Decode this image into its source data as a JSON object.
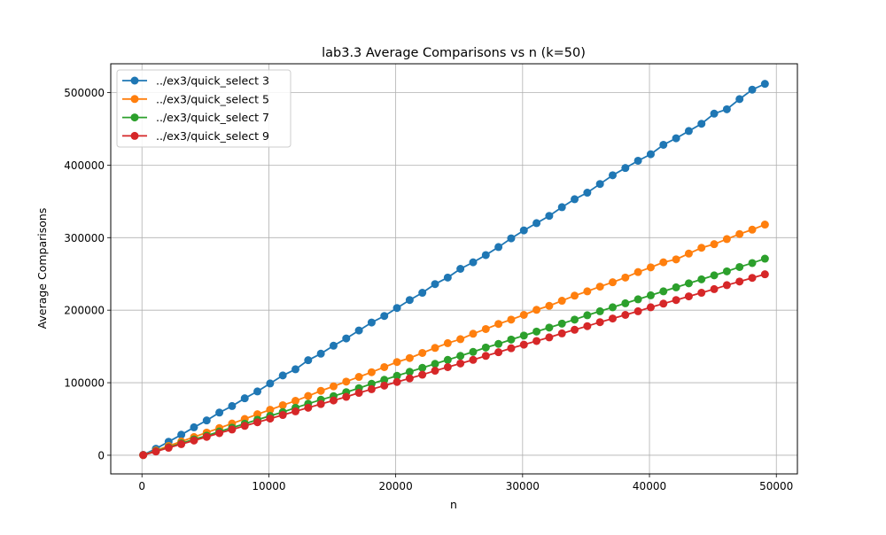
{
  "chart_data": {
    "type": "line",
    "title": "lab3.3 Average Comparisons vs n (k=50)",
    "xlabel": "n",
    "ylabel": "Average Comparisons",
    "xlim": [
      -2460,
      51660
    ],
    "ylim": [
      -25700,
      539700
    ],
    "xticks": [
      0,
      10000,
      20000,
      30000,
      40000,
      50000
    ],
    "yticks": [
      0,
      100000,
      200000,
      300000,
      400000,
      500000
    ],
    "grid": true,
    "legend": "top-left",
    "x": [
      100,
      1100,
      2100,
      3100,
      4100,
      5100,
      6100,
      7100,
      8100,
      9100,
      10100,
      11100,
      12100,
      13100,
      14100,
      15100,
      16100,
      17100,
      18100,
      19100,
      20100,
      21100,
      22100,
      23100,
      24100,
      25100,
      26100,
      27100,
      28100,
      29100,
      30100,
      31100,
      32100,
      33100,
      34100,
      35100,
      36100,
      37100,
      38100,
      39100,
      40100,
      41100,
      42100,
      43100,
      44100,
      45100,
      46100,
      47100,
      48100,
      49100
    ],
    "series": [
      {
        "name": "../ex3/quick_select 3",
        "color": "#1f77b4",
        "values": [
          500,
          9000,
          18600,
          28300,
          38500,
          48000,
          58800,
          67800,
          78500,
          88000,
          99000,
          110000,
          118500,
          131000,
          140000,
          151000,
          161000,
          172000,
          183000,
          192000,
          203000,
          214000,
          224000,
          236000,
          245000,
          257000,
          266000,
          276000,
          287000,
          299000,
          310000,
          320000,
          330000,
          342000,
          353000,
          362000,
          374000,
          386000,
          396000,
          406000,
          415000,
          428000,
          437000,
          447000,
          457000,
          471000,
          477000,
          491000,
          504000,
          512000
        ]
      },
      {
        "name": "../ex3/quick_select 5",
        "color": "#ff7f0e",
        "values": [
          300,
          6500,
          12800,
          19000,
          25100,
          31300,
          37500,
          43700,
          50000,
          56500,
          62700,
          69000,
          75000,
          81700,
          88800,
          95000,
          101500,
          108000,
          114500,
          121500,
          128500,
          134000,
          141000,
          148000,
          154500,
          160000,
          167500,
          174000,
          181000,
          187000,
          193500,
          200500,
          206000,
          213000,
          220000,
          226000,
          232500,
          238500,
          245000,
          252500,
          259000,
          266000,
          270000,
          278000,
          286000,
          291000,
          298000,
          305000,
          311000,
          318000
        ]
      },
      {
        "name": "../ex3/quick_select 7",
        "color": "#2ca02c",
        "values": [
          250,
          5600,
          11000,
          16500,
          21800,
          27000,
          32700,
          38000,
          43500,
          49000,
          54300,
          59500,
          65500,
          71000,
          76500,
          81500,
          87000,
          92500,
          98500,
          104000,
          109500,
          115000,
          120500,
          126000,
          131500,
          137000,
          142500,
          148500,
          153500,
          159500,
          165000,
          170500,
          176000,
          181500,
          187000,
          193000,
          198500,
          204000,
          209500,
          215000,
          220500,
          226000,
          231500,
          237000,
          242500,
          248000,
          253500,
          259500,
          265000,
          271000
        ]
      },
      {
        "name": "../ex3/quick_select 9",
        "color": "#d62728",
        "values": [
          200,
          5200,
          10300,
          15300,
          20300,
          25300,
          30500,
          35500,
          40500,
          45500,
          50500,
          55500,
          60500,
          65500,
          70600,
          75500,
          80500,
          86000,
          91000,
          96000,
          101000,
          106000,
          111000,
          116500,
          121500,
          126500,
          131500,
          137000,
          142000,
          147500,
          152500,
          157500,
          162500,
          168000,
          173000,
          178000,
          183500,
          188500,
          193500,
          198500,
          204000,
          209000,
          214000,
          219000,
          224000,
          229000,
          234500,
          239500,
          244500,
          249500
        ]
      }
    ]
  }
}
